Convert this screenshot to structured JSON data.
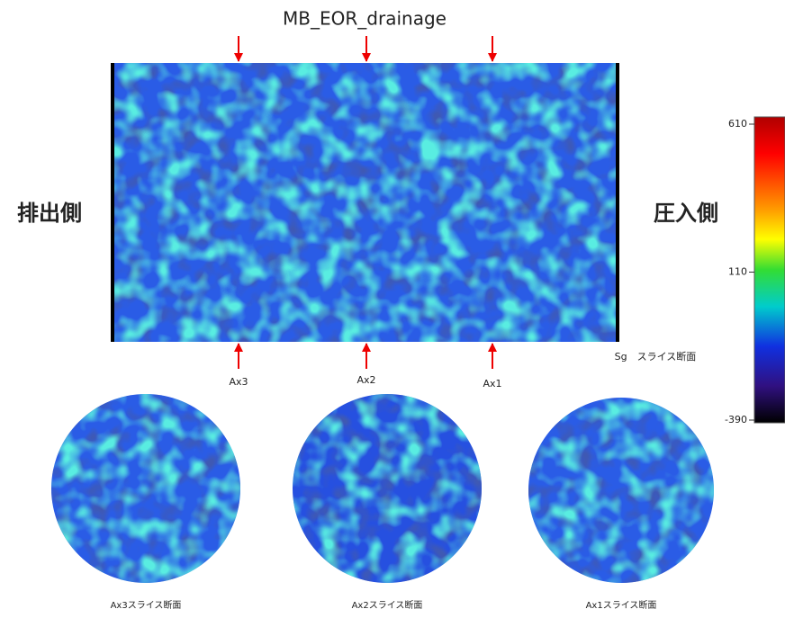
{
  "title": "MB_EOR_drainage",
  "left_label": "排出側",
  "right_label": "圧入側",
  "section_caption": "Sg　スライス断面",
  "axes": [
    "Ax3",
    "Ax2",
    "Ax1"
  ],
  "slice_captions": [
    "Ax3スライス断面",
    "Ax2スライス断面",
    "Ax1スライス断面"
  ],
  "colorbar": {
    "ticks": [
      610,
      110,
      -390
    ]
  }
}
